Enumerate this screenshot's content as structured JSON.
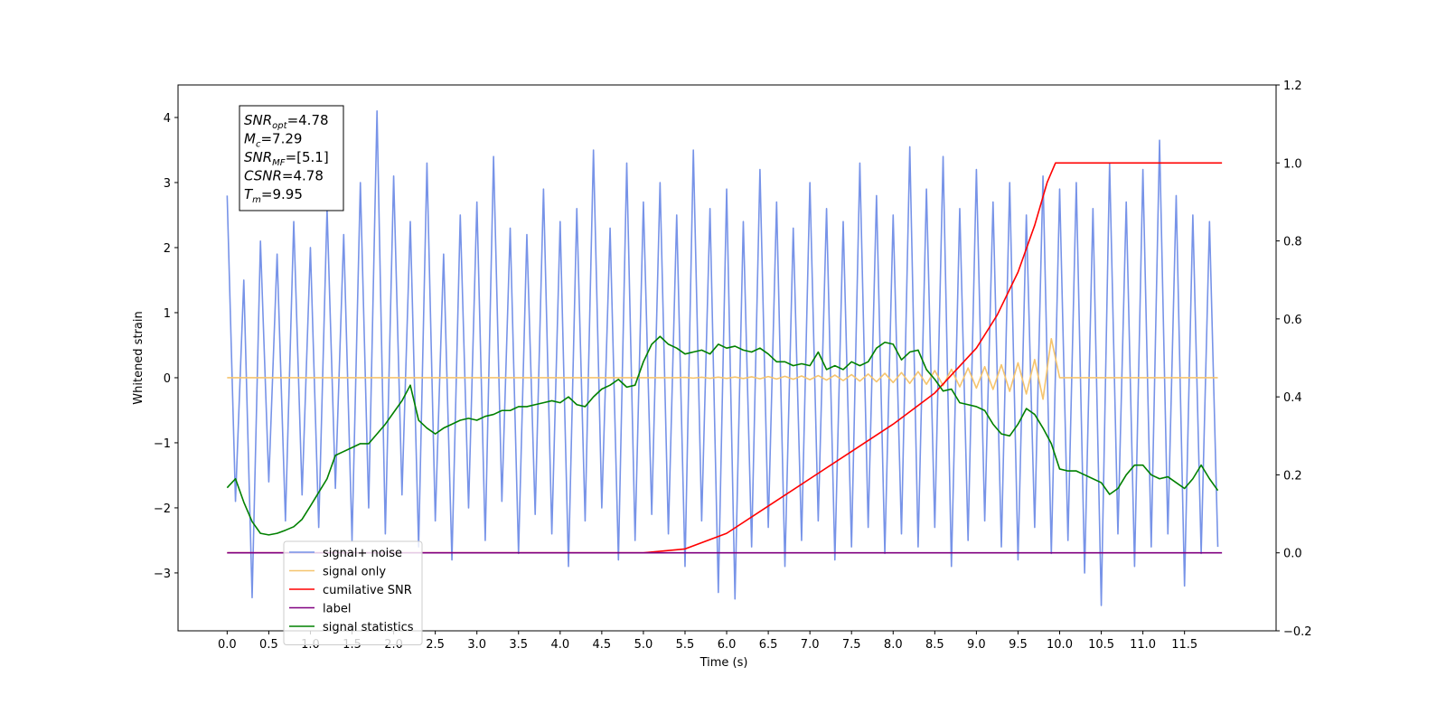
{
  "chart_data": {
    "type": "line",
    "xlabel": "Time (s)",
    "ylabel": "Whitened strain",
    "xlim": [
      -0.59,
      12.6
    ],
    "ylim": [
      -3.89,
      4.5
    ],
    "y2lim": [
      -0.2,
      1.2
    ],
    "xticks": [
      {
        "value": 0,
        "label": "0.0"
      },
      0.5,
      {
        "value": 1,
        "label": "1.0"
      },
      1.5,
      {
        "value": 2,
        "label": "2.0"
      },
      2.5,
      {
        "value": 3,
        "label": "3.0"
      },
      3.5,
      {
        "value": 4,
        "label": "4.0"
      },
      4.5,
      {
        "value": 5,
        "label": "5.0"
      },
      5.5,
      {
        "value": 6,
        "label": "6.0"
      },
      6.5,
      {
        "value": 7,
        "label": "7.0"
      },
      7.5,
      {
        "value": 8,
        "label": "8.0"
      },
      8.5,
      {
        "value": 9,
        "label": "9.0"
      },
      9.5,
      {
        "value": 10,
        "label": "10.0"
      },
      10.5,
      {
        "value": 11,
        "label": "11.0"
      },
      11.5
    ],
    "yticks": [
      {
        "value": -3,
        "label": "−3"
      },
      {
        "value": -2,
        "label": "−2"
      },
      {
        "value": -1,
        "label": "−1"
      },
      0,
      1,
      2,
      3,
      4
    ],
    "y2ticks": [
      {
        "value": -0.2,
        "label": "−0.2"
      },
      {
        "value": 0,
        "label": "0.0"
      },
      0.2,
      0.4,
      0.6,
      0.8,
      {
        "value": 1,
        "label": "1.0"
      },
      1.2
    ],
    "legend": "lower left",
    "annotation": {
      "lines": [
        {
          "base": "SNR",
          "sub": "opt",
          "text": "=4.78"
        },
        {
          "base": "M",
          "sub": "c",
          "text": "=7.29"
        },
        {
          "base": "SNR",
          "sub": "MF",
          "text": "=[5.1]"
        },
        {
          "base": "CSNR",
          "sub": null,
          "text": "=4.78"
        },
        {
          "base": "T",
          "sub": "m",
          "text": "=9.95"
        }
      ]
    },
    "series": [
      {
        "name": "signal+ noise",
        "color": "#7793e8",
        "x": [
          0,
          0.1,
          0.2,
          0.3,
          0.4,
          0.5,
          0.6,
          0.7,
          0.8,
          0.9,
          1,
          1.1,
          1.2,
          1.3,
          1.4,
          1.5,
          1.6,
          1.7,
          1.8,
          1.9,
          2,
          2.1,
          2.2,
          2.3,
          2.4,
          2.5,
          2.6,
          2.7,
          2.8,
          2.9,
          3,
          3.1,
          3.2,
          3.3,
          3.4,
          3.5,
          3.6,
          3.7,
          3.8,
          3.9,
          4,
          4.1,
          4.2,
          4.3,
          4.4,
          4.5,
          4.6,
          4.7,
          4.8,
          4.9,
          5,
          5.1,
          5.2,
          5.3,
          5.4,
          5.5,
          5.6,
          5.7,
          5.8,
          5.9,
          6,
          6.1,
          6.2,
          6.3,
          6.4,
          6.5,
          6.6,
          6.7,
          6.8,
          6.9,
          7,
          7.1,
          7.2,
          7.3,
          7.4,
          7.5,
          7.6,
          7.7,
          7.8,
          7.9,
          8,
          8.1,
          8.2,
          8.3,
          8.4,
          8.5,
          8.6,
          8.7,
          8.8,
          8.9,
          9,
          9.1,
          9.2,
          9.3,
          9.4,
          9.5,
          9.6,
          9.7,
          9.8,
          9.9,
          10,
          10.1,
          10.2,
          10.3,
          10.4,
          10.5,
          10.6,
          10.7,
          10.8,
          10.9,
          11,
          11.1,
          11.2,
          11.3,
          11.4,
          11.5,
          11.6,
          11.7,
          11.8,
          11.9
        ],
        "values": [
          2.8,
          -1.9,
          1.5,
          -3.38,
          2.1,
          -1.6,
          1.9,
          -2.2,
          2.4,
          -1.8,
          2.0,
          -2.3,
          2.6,
          -1.7,
          2.2,
          -2.5,
          3.0,
          -2.0,
          4.1,
          -2.4,
          3.1,
          -1.8,
          2.4,
          -2.6,
          3.3,
          -2.2,
          1.9,
          -2.8,
          2.5,
          -2.0,
          2.7,
          -2.5,
          3.4,
          -1.9,
          2.3,
          -2.7,
          2.2,
          -2.1,
          2.9,
          -2.4,
          2.4,
          -2.9,
          2.6,
          -2.2,
          3.5,
          -2.0,
          2.3,
          -2.8,
          3.3,
          -2.5,
          2.7,
          -2.1,
          3.0,
          -2.4,
          2.5,
          -2.9,
          3.5,
          -2.2,
          2.6,
          -3.3,
          2.9,
          -3.4,
          2.4,
          -2.6,
          3.2,
          -2.3,
          2.7,
          -2.9,
          2.3,
          -2.5,
          3.0,
          -2.2,
          2.6,
          -2.8,
          2.4,
          -2.6,
          3.3,
          -2.3,
          2.8,
          -2.7,
          2.5,
          -2.4,
          3.55,
          -2.6,
          2.9,
          -2.3,
          3.4,
          -2.9,
          2.6,
          -2.5,
          3.2,
          -2.2,
          2.7,
          -2.6,
          3.0,
          -2.8,
          2.5,
          -2.3,
          3.1,
          -2.7,
          2.9,
          -2.5,
          3.0,
          -3.0,
          2.6,
          -3.5,
          3.3,
          -2.4,
          2.7,
          -2.9,
          3.2,
          -2.6,
          3.65,
          -2.4,
          2.8,
          -3.2,
          2.5,
          -2.7,
          2.4,
          -2.6
        ]
      },
      {
        "name": "signal only",
        "color": "#f5c46e",
        "x": [
          0,
          0.1,
          0.2,
          0.3,
          0.4,
          0.5,
          0.6,
          0.7,
          0.8,
          0.9,
          1,
          1.1,
          1.2,
          1.3,
          1.4,
          1.5,
          1.6,
          1.7,
          1.8,
          1.9,
          2,
          2.1,
          2.2,
          2.3,
          2.4,
          2.5,
          2.6,
          2.7,
          2.8,
          2.9,
          3,
          3.1,
          3.2,
          3.3,
          3.4,
          3.5,
          3.6,
          3.7,
          3.8,
          3.9,
          4,
          4.1,
          4.2,
          4.3,
          4.4,
          4.5,
          4.6,
          4.7,
          4.8,
          4.9,
          5,
          5.1,
          5.2,
          5.3,
          5.4,
          5.5,
          5.6,
          5.7,
          5.8,
          5.9,
          6,
          6.1,
          6.2,
          6.3,
          6.4,
          6.5,
          6.6,
          6.7,
          6.8,
          6.9,
          7,
          7.1,
          7.2,
          7.3,
          7.4,
          7.5,
          7.6,
          7.7,
          7.8,
          7.9,
          8,
          8.1,
          8.2,
          8.3,
          8.4,
          8.5,
          8.6,
          8.7,
          8.8,
          8.9,
          9,
          9.1,
          9.2,
          9.3,
          9.4,
          9.5,
          9.6,
          9.7,
          9.8,
          9.9,
          10,
          10.1,
          10.2,
          10.3,
          10.4,
          10.5,
          10.6,
          10.7,
          10.8,
          10.9,
          11,
          11.1,
          11.2,
          11.3,
          11.4,
          11.5,
          11.6,
          11.7,
          11.8,
          11.9
        ],
        "values": [
          0,
          0,
          0,
          0,
          0,
          0,
          0,
          0,
          0,
          0,
          0,
          0,
          0,
          0,
          0,
          0,
          0,
          0,
          0,
          0,
          0,
          0,
          0,
          0,
          0,
          0,
          0,
          0,
          0,
          0,
          0,
          0,
          0,
          0,
          0,
          0,
          0,
          0,
          0,
          0,
          0,
          0,
          0,
          0,
          0,
          0,
          0,
          0,
          0,
          0,
          0,
          0,
          0,
          0,
          0,
          0.005,
          -0.006,
          0.007,
          -0.008,
          0.009,
          -0.01,
          0.011,
          -0.012,
          0.014,
          -0.016,
          0.018,
          -0.02,
          0.022,
          -0.024,
          0.027,
          -0.03,
          0.033,
          -0.036,
          0.04,
          -0.044,
          0.048,
          -0.052,
          0.057,
          -0.062,
          0.068,
          -0.074,
          0.08,
          -0.087,
          0.094,
          -0.1,
          0.11,
          -0.12,
          0.13,
          -0.14,
          0.15,
          -0.16,
          0.17,
          -0.18,
          0.2,
          -0.21,
          0.23,
          -0.25,
          0.28,
          -0.33,
          0.6,
          0,
          0,
          0,
          0,
          0,
          0,
          0,
          0,
          0,
          0,
          0,
          0,
          0,
          0,
          0,
          0,
          0,
          0,
          0,
          0
        ]
      },
      {
        "name": "cumilative SNR",
        "color": "red",
        "axis": "y2",
        "x": [
          0,
          5,
          5.5,
          6,
          6.5,
          7,
          7.5,
          8,
          8.5,
          9,
          9.25,
          9.5,
          9.7,
          9.85,
          9.95,
          11.95
        ],
        "values": [
          0,
          0,
          0.01,
          0.05,
          0.12,
          0.19,
          0.26,
          0.33,
          0.41,
          0.525,
          0.61,
          0.72,
          0.84,
          0.95,
          1.0,
          1.0
        ]
      },
      {
        "name": "label",
        "color": "purple",
        "axis": "y2",
        "x": [
          0,
          11.95
        ],
        "values": [
          0,
          0
        ]
      },
      {
        "name": "signal statistics",
        "color": "green",
        "axis": "y2",
        "x": [
          0,
          0.1,
          0.2,
          0.3,
          0.4,
          0.5,
          0.6,
          0.7,
          0.8,
          0.9,
          1,
          1.1,
          1.2,
          1.3,
          1.4,
          1.5,
          1.6,
          1.7,
          1.8,
          1.9,
          2,
          2.1,
          2.2,
          2.3,
          2.4,
          2.5,
          2.6,
          2.7,
          2.8,
          2.9,
          3,
          3.1,
          3.2,
          3.3,
          3.4,
          3.5,
          3.6,
          3.7,
          3.8,
          3.9,
          4,
          4.1,
          4.2,
          4.3,
          4.4,
          4.5,
          4.6,
          4.7,
          4.8,
          4.9,
          5,
          5.1,
          5.2,
          5.3,
          5.4,
          5.5,
          5.6,
          5.7,
          5.8,
          5.9,
          6,
          6.1,
          6.2,
          6.3,
          6.4,
          6.5,
          6.6,
          6.7,
          6.8,
          6.9,
          7,
          7.1,
          7.2,
          7.3,
          7.4,
          7.5,
          7.6,
          7.7,
          7.8,
          7.9,
          8,
          8.1,
          8.2,
          8.3,
          8.4,
          8.5,
          8.6,
          8.7,
          8.8,
          8.9,
          9,
          9.1,
          9.2,
          9.3,
          9.4,
          9.5,
          9.6,
          9.7,
          9.8,
          9.9,
          10,
          10.1,
          10.2,
          10.3,
          10.4,
          10.5,
          10.6,
          10.7,
          10.8,
          10.9,
          11,
          11.1,
          11.2,
          11.3,
          11.4,
          11.5,
          11.6,
          11.7,
          11.8,
          11.9
        ],
        "values": [
          0.167,
          0.19,
          0.13,
          0.08,
          0.05,
          0.046,
          0.05,
          0.058,
          0.067,
          0.086,
          0.12,
          0.155,
          0.19,
          0.25,
          0.26,
          0.27,
          0.28,
          0.28,
          0.305,
          0.33,
          0.36,
          0.39,
          0.43,
          0.34,
          0.32,
          0.305,
          0.32,
          0.33,
          0.34,
          0.345,
          0.34,
          0.35,
          0.355,
          0.365,
          0.365,
          0.375,
          0.375,
          0.38,
          0.385,
          0.39,
          0.385,
          0.4,
          0.38,
          0.375,
          0.4,
          0.42,
          0.43,
          0.445,
          0.425,
          0.43,
          0.49,
          0.535,
          0.555,
          0.535,
          0.525,
          0.51,
          0.515,
          0.52,
          0.51,
          0.535,
          0.525,
          0.53,
          0.52,
          0.515,
          0.525,
          0.51,
          0.49,
          0.49,
          0.48,
          0.485,
          0.48,
          0.515,
          0.47,
          0.48,
          0.47,
          0.49,
          0.48,
          0.49,
          0.525,
          0.54,
          0.535,
          0.495,
          0.515,
          0.52,
          0.47,
          0.445,
          0.415,
          0.42,
          0.385,
          0.38,
          0.375,
          0.365,
          0.33,
          0.305,
          0.3,
          0.33,
          0.37,
          0.355,
          0.32,
          0.28,
          0.215,
          0.21,
          0.21,
          0.2,
          0.19,
          0.18,
          0.15,
          0.165,
          0.2,
          0.225,
          0.225,
          0.2,
          0.19,
          0.195,
          0.18,
          0.165,
          0.19,
          0.225,
          0.19,
          0.16
        ]
      }
    ]
  }
}
